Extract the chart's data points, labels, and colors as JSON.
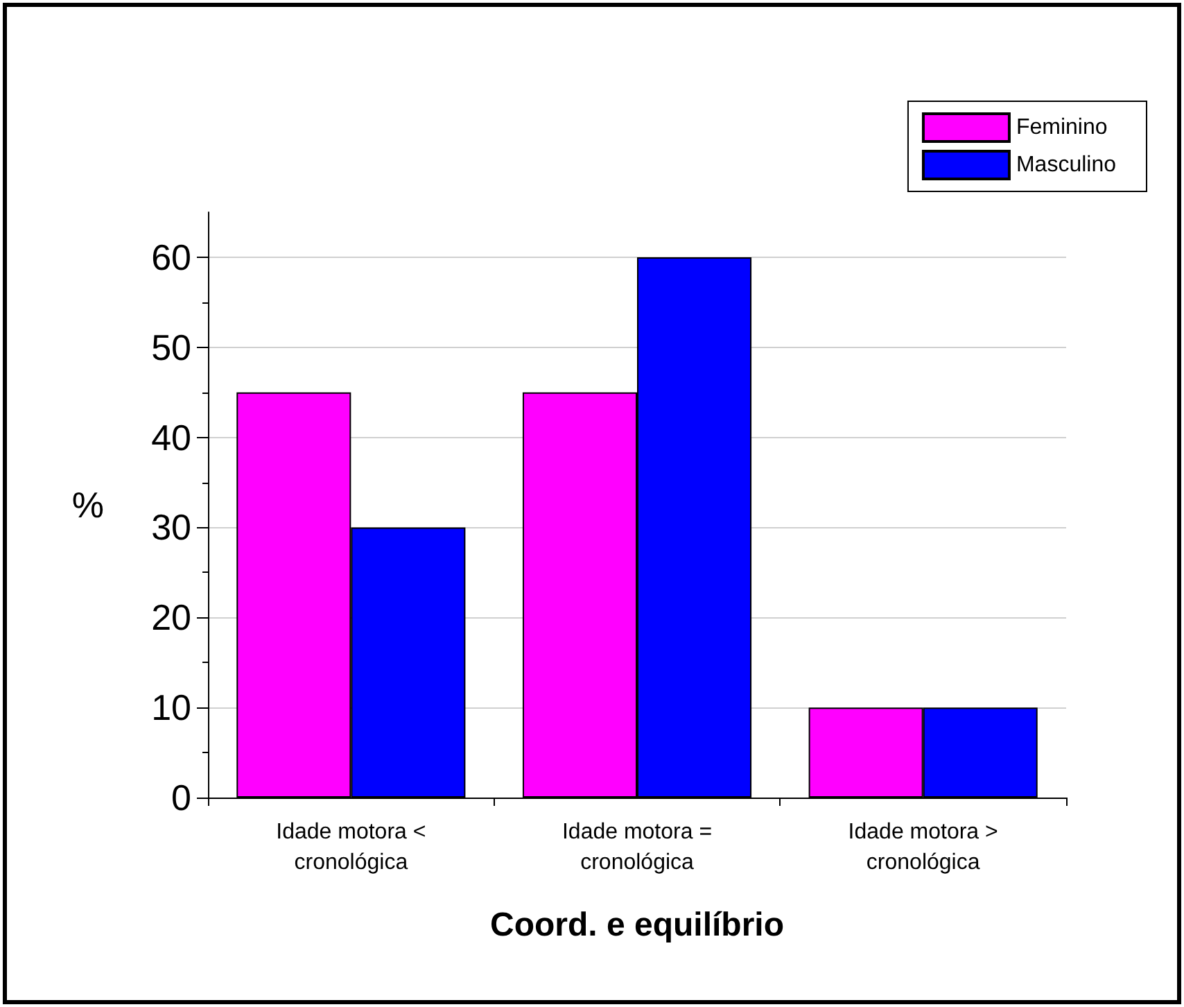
{
  "chart_data": {
    "type": "bar",
    "xlabel": "Coord. e equilíbrio",
    "ylabel": "%",
    "categories": [
      "Idade motora <\ncronológica",
      "Idade motora =\ncronológica",
      "Idade motora >\ncronológica"
    ],
    "series": [
      {
        "name": "Feminino",
        "color": "#ff00ff",
        "values": [
          45,
          45,
          10
        ]
      },
      {
        "name": "Masculino",
        "color": "#0000ff",
        "values": [
          30,
          60,
          10
        ]
      }
    ],
    "ylim": [
      0,
      65
    ],
    "yticks": [
      0,
      10,
      20,
      30,
      40,
      50,
      60
    ],
    "grid": "y",
    "legend": "top right"
  }
}
